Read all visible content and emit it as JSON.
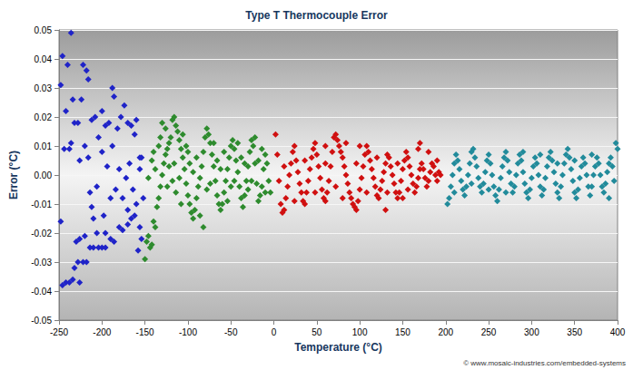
{
  "chart_data": {
    "type": "scatter",
    "title": "Type T Thermocouple Error",
    "x_label": "Temperature (°C)",
    "y_label": "Error (°C)",
    "annotations": [
      "© www.mosaic-industries.com/embedded-systems"
    ],
    "xlim": [
      -250,
      400
    ],
    "xticks": [
      -250,
      -200,
      -150,
      -100,
      -50,
      0,
      50,
      100,
      150,
      200,
      250,
      300,
      350,
      400
    ],
    "ylim": [
      -0.05,
      0.05
    ],
    "yticks": [
      -0.05,
      -0.04,
      -0.03,
      -0.02,
      -0.01,
      {
        "value": 0,
        "label": "0.00"
      },
      0.01,
      0.02,
      0.03,
      0.04,
      0.05
    ],
    "grid": true,
    "marker": "diamond",
    "series": [
      {
        "color": "#1f23c8",
        "x": [
          -248,
          -246,
          -244,
          -242,
          -240,
          -236,
          -234,
          -232,
          -238,
          -236,
          -248,
          -246,
          -242,
          -238,
          -234,
          -232,
          -230,
          -228,
          -226,
          -222,
          -218,
          -214,
          -210,
          -206,
          -204,
          -200,
          -196,
          -196,
          -190,
          -186,
          -180,
          -176,
          -170,
          -166,
          -162,
          -158,
          -156,
          -154,
          -222,
          -218,
          -216,
          -212,
          -208,
          -204,
          -200,
          -196,
          -192,
          -188,
          -186,
          -182,
          -178,
          -174,
          -170,
          -166,
          -162,
          -160,
          -156,
          -154,
          -228,
          -224,
          -220,
          -226,
          -214,
          -210,
          -206,
          -200,
          -194,
          -190,
          -184,
          -180,
          -176,
          -172,
          -168,
          -164,
          -160,
          -156,
          -220,
          -226,
          -216,
          -212,
          -198,
          -188,
          -170,
          -152
        ],
        "values": [
          0.031,
          0.041,
          0.009,
          0.022,
          0.038,
          0.049,
          0.026,
          0.018,
          0.009,
          0.011,
          -0.016,
          -0.038,
          -0.037,
          -0.037,
          -0.036,
          -0.032,
          -0.023,
          -0.03,
          -0.037,
          -0.03,
          -0.03,
          -0.025,
          -0.025,
          -0.02,
          -0.025,
          -0.025,
          -0.02,
          -0.025,
          -0.022,
          -0.023,
          -0.018,
          -0.019,
          -0.017,
          -0.015,
          -0.014,
          -0.026,
          -0.018,
          -0.022,
          0.038,
          0.036,
          0.033,
          0.019,
          0.02,
          0.013,
          0.022,
          0.017,
          0.018,
          0.03,
          0.027,
          0.016,
          0.02,
          0.024,
          0.018,
          0.017,
          0.014,
          0.019,
          0.006,
          0.006,
          0.018,
          0.026,
          0.01,
          0.005,
          -0.006,
          -0.015,
          -0.004,
          0.008,
          0.003,
          -0.008,
          -0.005,
          0.002,
          -0.008,
          -0.001,
          0.004,
          -0.005,
          -0.01,
          0.002,
          -0.021,
          -0.022,
          0.006,
          -0.011,
          -0.014,
          0.01,
          -0.012,
          -0.008
        ]
      },
      {
        "color": "#2e8b2e",
        "x": [
          -150,
          -148,
          -146,
          -144,
          -142,
          -140,
          -138,
          -136,
          -134,
          -132,
          -130,
          -128,
          -126,
          -124,
          -122,
          -120,
          -118,
          -116,
          -114,
          -112,
          -110,
          -108,
          -106,
          -104,
          -102,
          -100,
          -98,
          -96,
          -94,
          -92,
          -90,
          -88,
          -86,
          -84,
          -82,
          -80,
          -78,
          -76,
          -74,
          -72,
          -70,
          -68,
          -66,
          -64,
          -62,
          -60,
          -58,
          -56,
          -54,
          -52,
          -50,
          -48,
          -46,
          -44,
          -42,
          -40,
          -38,
          -36,
          -34,
          -32,
          -30,
          -28,
          -26,
          -24,
          -22,
          -20,
          -18,
          -16,
          -14,
          -12,
          -10,
          -8,
          -6,
          -4,
          -146,
          -142,
          -138,
          -134,
          -130,
          -126,
          -122,
          -118,
          -114,
          -110,
          -106,
          -102,
          -98,
          -94,
          -90,
          -86,
          -82,
          -78,
          -74,
          -70,
          -66,
          -62,
          -58,
          -54,
          -50,
          -46,
          -42,
          -38,
          -34,
          -30,
          -26,
          -22,
          -18,
          -14,
          -10,
          -140,
          -132,
          -124,
          -116,
          -108,
          -100
        ],
        "values": [
          -0.029,
          -0.023,
          -0.021,
          -0.025,
          -0.024,
          -0.016,
          -0.018,
          -0.011,
          -0.008,
          -0.004,
          0.0,
          0.004,
          0.007,
          0.009,
          0.011,
          0.013,
          0.019,
          0.02,
          0.017,
          0.015,
          0.012,
          0.009,
          0.006,
          0.002,
          -0.003,
          -0.007,
          -0.01,
          -0.013,
          -0.015,
          -0.012,
          -0.008,
          -0.004,
          -0.001,
          0.003,
          0.008,
          0.013,
          0.016,
          0.014,
          0.011,
          0.007,
          0.003,
          -0.002,
          -0.007,
          -0.01,
          -0.012,
          -0.01,
          -0.006,
          -0.002,
          0.002,
          0.006,
          0.01,
          0.012,
          0.009,
          0.005,
          0.001,
          -0.004,
          -0.008,
          -0.011,
          -0.007,
          -0.002,
          0.003,
          0.008,
          0.012,
          0.01,
          0.004,
          -0.003,
          -0.009,
          -0.007,
          -0.004,
          0.002,
          0.007,
          0.004,
          -0.002,
          -0.006,
          -0.001,
          0.005,
          0.002,
          0.01,
          0.018,
          0.016,
          0.003,
          -0.002,
          -0.006,
          -0.001,
          0.014,
          0.01,
          0.004,
          0.001,
          0.006,
          -0.014,
          -0.018,
          -0.005,
          -0.003,
          0.011,
          0.005,
          0.002,
          0.008,
          -0.009,
          -0.004,
          -0.002,
          0.011,
          0.006,
          0.004,
          -0.005,
          -0.002,
          0.013,
          0.005,
          0.009,
          -0.006,
          0.008,
          0.013,
          -0.004,
          0.004,
          -0.01,
          0.008
        ]
      },
      {
        "color": "#d01010",
        "x": [
          2,
          4,
          6,
          8,
          10,
          12,
          14,
          16,
          18,
          20,
          22,
          24,
          26,
          28,
          30,
          32,
          34,
          36,
          38,
          40,
          42,
          44,
          46,
          48,
          50,
          52,
          54,
          56,
          58,
          60,
          62,
          64,
          66,
          68,
          70,
          72,
          74,
          76,
          78,
          80,
          82,
          84,
          86,
          88,
          90,
          92,
          94,
          96,
          98,
          100,
          102,
          104,
          106,
          108,
          110,
          112,
          114,
          116,
          118,
          120,
          122,
          124,
          126,
          128,
          130,
          132,
          134,
          136,
          138,
          140,
          142,
          144,
          146,
          148,
          150,
          152,
          154,
          156,
          158,
          160,
          162,
          164,
          166,
          168,
          170,
          172,
          174,
          176,
          178,
          180,
          182,
          184,
          186,
          188,
          190,
          192,
          194,
          12,
          24,
          36,
          48,
          60,
          72,
          84,
          96,
          108,
          120,
          132,
          144,
          156,
          168,
          180,
          60,
          80,
          100,
          130,
          150,
          170,
          190
        ],
        "values": [
          0.014,
          0.007,
          -0.002,
          -0.01,
          -0.013,
          -0.012,
          -0.008,
          -0.004,
          0.0,
          0.004,
          0.008,
          0.01,
          0.005,
          0.001,
          -0.003,
          -0.006,
          -0.009,
          -0.01,
          -0.006,
          -0.002,
          0.002,
          0.006,
          0.009,
          0.011,
          0.007,
          0.003,
          -0.001,
          -0.005,
          -0.008,
          -0.009,
          -0.006,
          -0.002,
          0.003,
          0.008,
          0.013,
          0.014,
          0.012,
          0.01,
          0.008,
          0.006,
          0.003,
          0.0,
          -0.003,
          -0.006,
          -0.008,
          -0.01,
          -0.011,
          -0.012,
          -0.009,
          -0.005,
          -0.001,
          0.003,
          0.007,
          0.01,
          0.008,
          0.005,
          0.002,
          -0.001,
          -0.004,
          -0.007,
          -0.008,
          -0.005,
          -0.002,
          0.001,
          0.004,
          0.007,
          0.006,
          0.003,
          0.0,
          -0.003,
          -0.006,
          -0.008,
          -0.006,
          -0.002,
          0.002,
          0.005,
          0.008,
          0.006,
          0.003,
          0.0,
          -0.003,
          -0.006,
          -0.004,
          -0.001,
          0.002,
          0.004,
          0.002,
          -0.001,
          -0.004,
          -0.002,
          0.001,
          0.004,
          0.003,
          0.0,
          -0.002,
          0.001,
          0.0,
          0.003,
          -0.009,
          0.005,
          -0.006,
          0.004,
          -0.004,
          0.011,
          0.004,
          -0.006,
          0.006,
          -0.006,
          0.004,
          -0.005,
          0.009,
          0.008,
          0.01,
          -0.008,
          0.01,
          -0.012,
          -0.008,
          0.011,
          0.005
        ]
      },
      {
        "color": "#228b9b",
        "x": [
          202,
          204,
          206,
          208,
          210,
          212,
          214,
          216,
          218,
          220,
          222,
          224,
          226,
          228,
          230,
          232,
          234,
          236,
          238,
          240,
          242,
          244,
          246,
          248,
          250,
          252,
          254,
          256,
          258,
          260,
          262,
          264,
          266,
          268,
          270,
          272,
          274,
          276,
          278,
          280,
          282,
          284,
          286,
          288,
          290,
          292,
          294,
          296,
          298,
          300,
          302,
          304,
          306,
          308,
          310,
          312,
          314,
          316,
          318,
          320,
          322,
          324,
          326,
          328,
          330,
          332,
          334,
          336,
          338,
          340,
          342,
          344,
          346,
          348,
          350,
          352,
          354,
          356,
          358,
          360,
          362,
          364,
          366,
          368,
          370,
          372,
          374,
          376,
          378,
          380,
          382,
          384,
          386,
          388,
          390,
          392,
          394,
          396,
          398,
          400,
          210,
          230,
          250,
          270,
          290,
          310,
          330,
          350,
          370,
          390
        ],
        "values": [
          -0.01,
          -0.008,
          -0.004,
          0.0,
          0.004,
          0.007,
          0.005,
          0.002,
          -0.002,
          -0.005,
          -0.007,
          -0.004,
          0.0,
          0.004,
          0.008,
          0.009,
          0.006,
          0.003,
          -0.001,
          -0.004,
          -0.006,
          -0.003,
          0.001,
          0.005,
          0.007,
          0.004,
          0.0,
          -0.004,
          -0.007,
          -0.009,
          -0.005,
          -0.001,
          0.003,
          0.006,
          0.008,
          0.005,
          0.001,
          -0.003,
          -0.006,
          -0.004,
          0.0,
          0.004,
          0.007,
          0.005,
          0.001,
          -0.003,
          -0.006,
          -0.008,
          -0.005,
          -0.001,
          0.003,
          0.006,
          0.004,
          0.0,
          -0.004,
          -0.007,
          -0.005,
          -0.001,
          0.003,
          0.006,
          0.008,
          0.005,
          0.001,
          -0.003,
          -0.006,
          -0.008,
          -0.004,
          0.0,
          0.004,
          0.007,
          0.009,
          0.006,
          0.002,
          -0.002,
          -0.006,
          -0.008,
          -0.005,
          -0.001,
          0.003,
          0.006,
          0.004,
          0.0,
          -0.004,
          -0.007,
          -0.004,
          0.0,
          0.003,
          0.006,
          0.004,
          0.0,
          -0.004,
          -0.006,
          -0.003,
          0.001,
          0.004,
          0.006,
          0.003,
          -0.002,
          0.011,
          0.009,
          -0.006,
          -0.003,
          -0.005,
          -0.006,
          0.008,
          0.007,
          0.004,
          0.005,
          0.007,
          -0.008
        ]
      }
    ]
  }
}
